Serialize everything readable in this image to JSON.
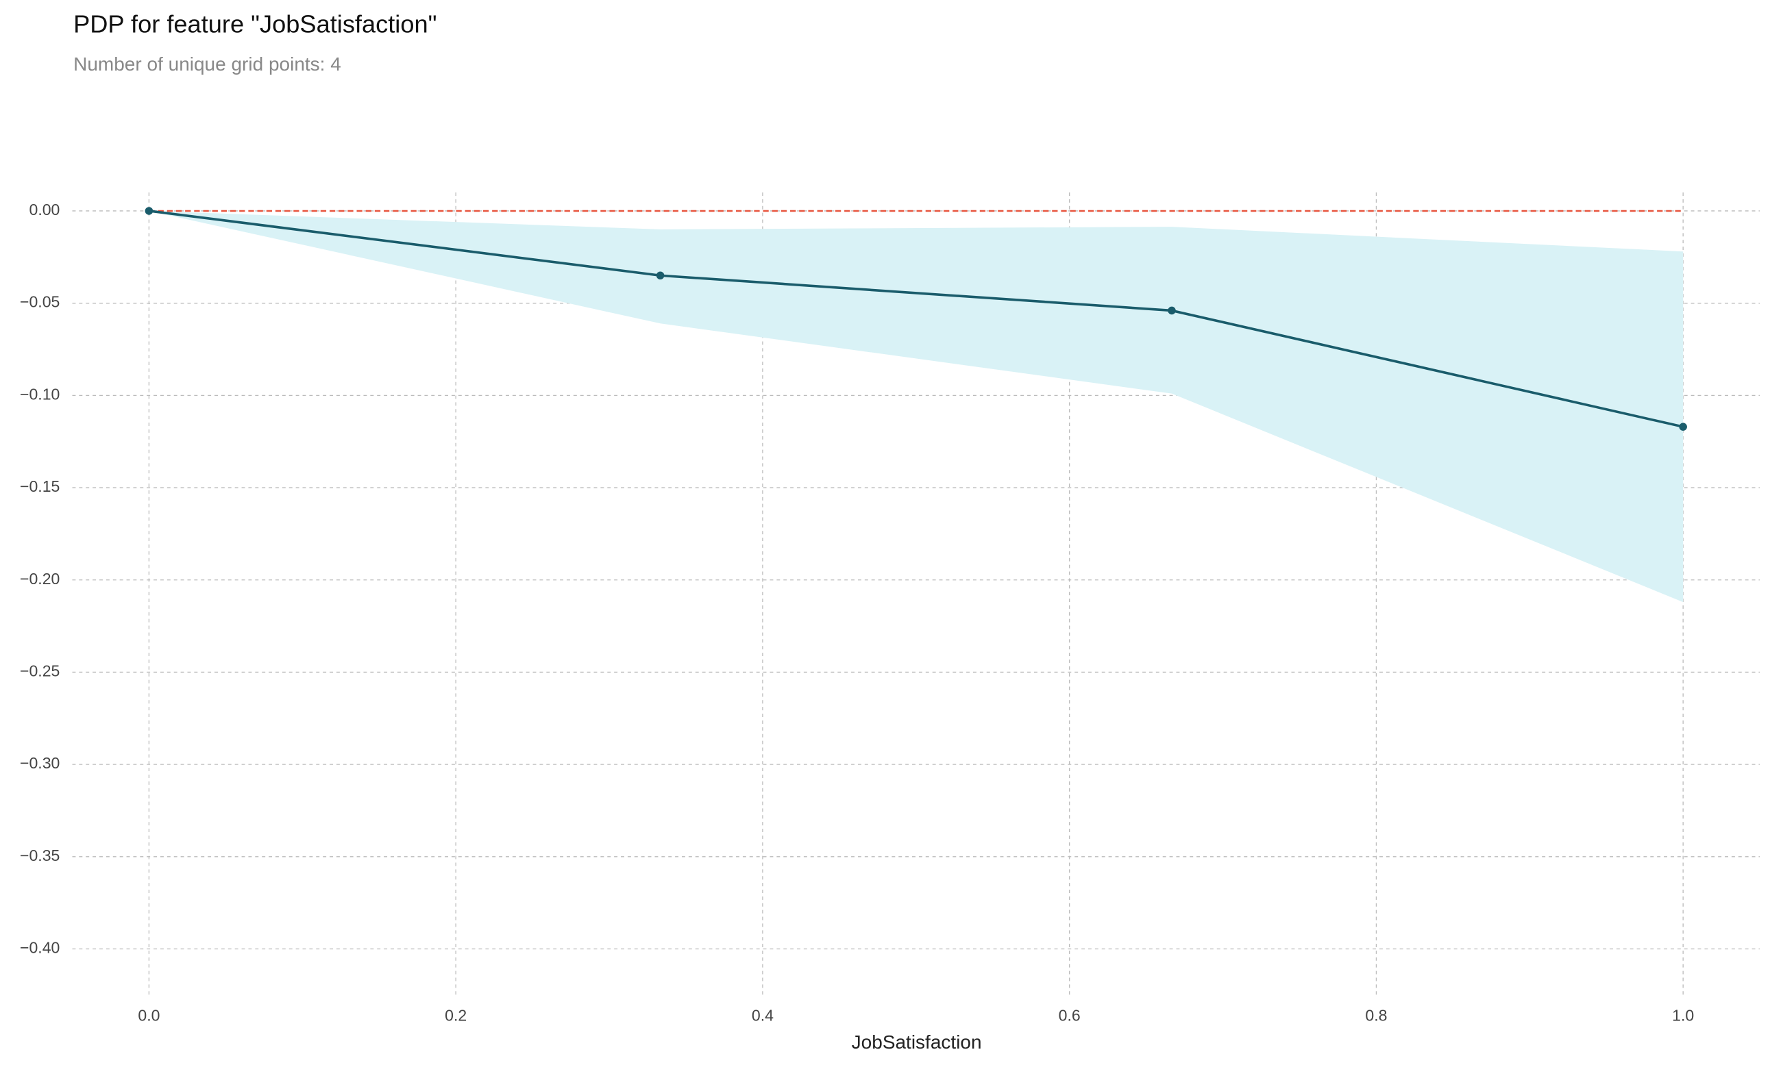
{
  "chart_data": {
    "type": "line",
    "title": "PDP for feature \"JobSatisfaction\"",
    "subtitle": "Number of unique grid points: 4",
    "x_label": "JobSatisfaction",
    "x": [
      0,
      0.3333,
      0.6667,
      1.0
    ],
    "values": [
      0,
      -0.035,
      -0.054,
      -0.117
    ],
    "color": "#1a5c6b",
    "band": {
      "upper": [
        0,
        -0.01,
        -0.0086,
        -0.022
      ],
      "lower": [
        0,
        -0.061,
        -0.099,
        -0.212
      ],
      "color": "#d9f2f6"
    },
    "reference_line": {
      "value": 0,
      "color": "#e8563f"
    },
    "xlim": [
      -0.05,
      1.05
    ],
    "xticks": [
      {
        "value": 0,
        "label": "0.0"
      },
      0.2,
      0.4,
      0.6,
      0.8,
      {
        "value": 1.0,
        "label": "1.0"
      }
    ],
    "ylim": [
      -0.425,
      0.01
    ],
    "yticks": [
      {
        "value": 0,
        "label": "0.00"
      },
      {
        "value": -0.05,
        "label": "−0.05"
      },
      {
        "value": -0.1,
        "label": "−0.10"
      },
      {
        "value": -0.15,
        "label": "−0.15"
      },
      {
        "value": -0.2,
        "label": "−0.20"
      },
      {
        "value": -0.25,
        "label": "−0.25"
      },
      {
        "value": -0.3,
        "label": "−0.30"
      },
      {
        "value": -0.35,
        "label": "−0.35"
      },
      {
        "value": -0.4,
        "label": "−0.40"
      }
    ],
    "grid": true
  }
}
